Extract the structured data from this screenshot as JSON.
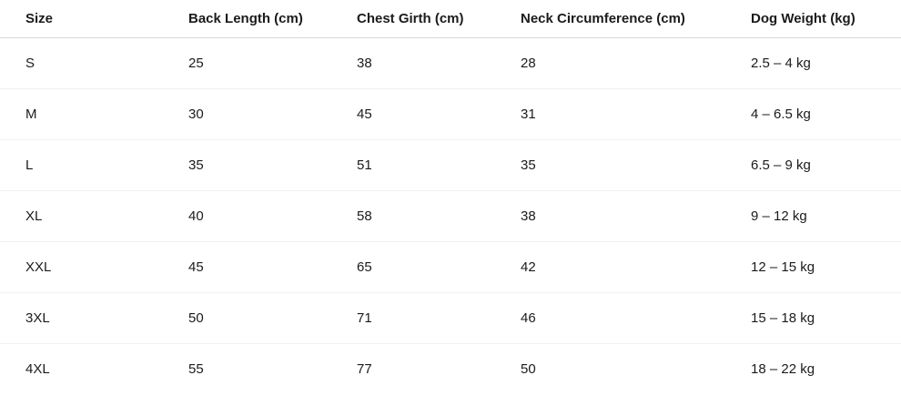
{
  "table": {
    "columns": [
      "Size",
      "Back Length (cm)",
      "Chest Girth (cm)",
      "Neck Circumference (cm)",
      "Dog Weight (kg)"
    ],
    "rows": [
      {
        "size": "S",
        "back_length": "25",
        "chest_girth": "38",
        "neck_circumference": "28",
        "dog_weight": "2.5 – 4 kg"
      },
      {
        "size": "M",
        "back_length": "30",
        "chest_girth": "45",
        "neck_circumference": "31",
        "dog_weight": "4 – 6.5 kg"
      },
      {
        "size": "L",
        "back_length": "35",
        "chest_girth": "51",
        "neck_circumference": "35",
        "dog_weight": "6.5 – 9 kg"
      },
      {
        "size": "XL",
        "back_length": "40",
        "chest_girth": "58",
        "neck_circumference": "38",
        "dog_weight": "9 – 12 kg"
      },
      {
        "size": "XXL",
        "back_length": "45",
        "chest_girth": "65",
        "neck_circumference": "42",
        "dog_weight": "12 – 15 kg"
      },
      {
        "size": "3XL",
        "back_length": "50",
        "chest_girth": "71",
        "neck_circumference": "46",
        "dog_weight": "15 – 18 kg"
      },
      {
        "size": "4XL",
        "back_length": "55",
        "chest_girth": "77",
        "neck_circumference": "50",
        "dog_weight": "18 – 22 kg"
      }
    ]
  },
  "colors": {
    "text": "#1b1b1b",
    "header_border": "#d8d8d8",
    "row_border": "#f1f1f1",
    "background": "#ffffff"
  }
}
